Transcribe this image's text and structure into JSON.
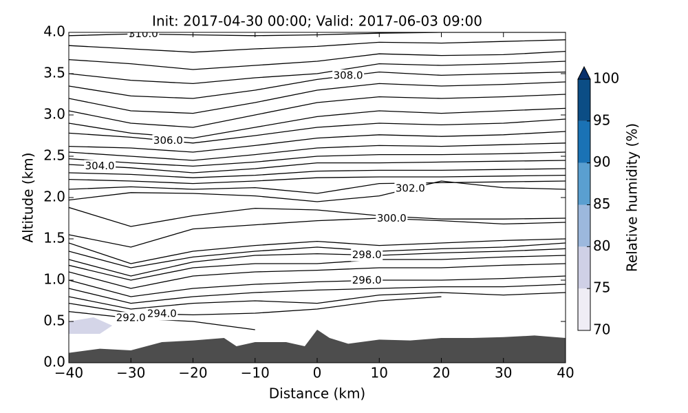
{
  "chart_data": {
    "type": "contour",
    "title": "Init: 2017-04-30 00:00; Valid: 2017-06-03 09:00",
    "x_label": "Distance (km)",
    "y_label": "Altitude (km)",
    "xlim": [
      -40,
      40
    ],
    "ylim": [
      0,
      4
    ],
    "xticks": [
      {
        "value": -40,
        "label": "−40"
      },
      {
        "value": -30,
        "label": "−30"
      },
      {
        "value": -20,
        "label": "−20"
      },
      {
        "value": -10,
        "label": "−10"
      },
      0,
      10,
      20,
      30,
      40
    ],
    "yticks": [
      {
        "value": 0,
        "label": "0.0"
      },
      {
        "value": 0.5,
        "label": "0.5"
      },
      {
        "value": 1,
        "label": "1.0"
      },
      {
        "value": 1.5,
        "label": "1.5"
      },
      {
        "value": 2,
        "label": "2.0"
      },
      {
        "value": 2.5,
        "label": "2.5"
      },
      {
        "value": 3,
        "label": "3.0"
      },
      {
        "value": 3.5,
        "label": "3.5"
      },
      {
        "value": 4,
        "label": "4.0"
      }
    ],
    "contour_color": "#000000",
    "contour_x": [
      -40,
      -30,
      -20,
      -10,
      0,
      10,
      20,
      30,
      40
    ],
    "contours": [
      {
        "label": "310.0",
        "y": [
          3.96,
          3.98,
          3.97,
          3.96,
          3.97,
          3.99,
          4.0,
          4.0,
          4.0
        ]
      },
      {
        "y": [
          3.84,
          3.8,
          3.76,
          3.8,
          3.83,
          3.88,
          3.87,
          3.89,
          3.91
        ]
      },
      {
        "y": [
          3.67,
          3.62,
          3.55,
          3.6,
          3.65,
          3.74,
          3.72,
          3.73,
          3.77
        ]
      },
      {
        "y": [
          3.5,
          3.42,
          3.38,
          3.45,
          3.5,
          3.62,
          3.6,
          3.62,
          3.65
        ]
      },
      {
        "label": "308.0",
        "y": [
          3.35,
          3.23,
          3.2,
          3.3,
          3.43,
          3.52,
          3.48,
          3.5,
          3.52
        ]
      },
      {
        "y": [
          3.2,
          3.05,
          3.02,
          3.15,
          3.3,
          3.38,
          3.35,
          3.37,
          3.4
        ]
      },
      {
        "y": [
          3.05,
          2.9,
          2.85,
          3.0,
          3.15,
          3.22,
          3.2,
          3.22,
          3.25
        ]
      },
      {
        "y": [
          2.9,
          2.78,
          2.72,
          2.85,
          2.98,
          3.05,
          3.02,
          3.05,
          3.08
        ]
      },
      {
        "label": "306.0",
        "y": [
          2.78,
          2.73,
          2.66,
          2.75,
          2.85,
          2.9,
          2.88,
          2.9,
          2.95
        ]
      },
      {
        "y": [
          2.62,
          2.6,
          2.55,
          2.63,
          2.72,
          2.76,
          2.74,
          2.76,
          2.8
        ]
      },
      {
        "y": [
          2.55,
          2.5,
          2.45,
          2.52,
          2.6,
          2.63,
          2.62,
          2.64,
          2.66
        ]
      },
      {
        "y": [
          2.47,
          2.42,
          2.38,
          2.43,
          2.5,
          2.52,
          2.52,
          2.53,
          2.55
        ]
      },
      {
        "label": "304.0",
        "y": [
          2.4,
          2.36,
          2.3,
          2.35,
          2.42,
          2.42,
          2.43,
          2.44,
          2.45
        ]
      },
      {
        "y": [
          2.3,
          2.28,
          2.24,
          2.27,
          2.32,
          2.33,
          2.33,
          2.34,
          2.35
        ]
      },
      {
        "y": [
          2.22,
          2.2,
          2.17,
          2.2,
          2.24,
          2.25,
          2.25,
          2.26,
          2.27
        ]
      },
      {
        "y": [
          2.1,
          2.13,
          2.1,
          2.12,
          2.05,
          2.17,
          2.18,
          2.19,
          2.2
        ]
      },
      {
        "label": "302.0",
        "y": [
          1.97,
          2.06,
          2.05,
          2.02,
          1.95,
          2.02,
          2.2,
          2.12,
          2.1
        ]
      },
      {
        "y": [
          1.88,
          1.65,
          1.78,
          1.87,
          1.85,
          1.78,
          1.74,
          1.74,
          1.75
        ]
      },
      {
        "label": "300.0",
        "y": [
          1.55,
          1.4,
          1.62,
          1.67,
          1.72,
          1.75,
          1.72,
          1.68,
          1.7
        ]
      },
      {
        "y": [
          1.45,
          1.2,
          1.35,
          1.42,
          1.47,
          1.42,
          1.45,
          1.48,
          1.5
        ]
      },
      {
        "y": [
          1.35,
          1.15,
          1.28,
          1.35,
          1.4,
          1.35,
          1.38,
          1.4,
          1.45
        ]
      },
      {
        "label": "298.0",
        "y": [
          1.25,
          1.05,
          1.22,
          1.3,
          1.32,
          1.3,
          1.33,
          1.35,
          1.38
        ]
      },
      {
        "y": [
          1.18,
          1.0,
          1.15,
          1.2,
          1.2,
          1.25,
          1.25,
          1.28,
          1.3
        ]
      },
      {
        "y": [
          1.1,
          0.9,
          1.05,
          1.1,
          1.12,
          1.15,
          1.15,
          1.18,
          1.2
        ]
      },
      {
        "label": "296.0",
        "y": [
          1.0,
          0.8,
          0.9,
          0.95,
          0.98,
          1.0,
          1.0,
          1.02,
          1.05
        ]
      },
      {
        "y": [
          0.9,
          0.72,
          0.8,
          0.85,
          0.88,
          0.9,
          0.92,
          0.92,
          0.95
        ]
      },
      {
        "y": [
          0.8,
          0.65,
          0.72,
          0.75,
          0.72,
          0.82,
          0.85,
          0.82,
          0.85
        ]
      },
      {
        "label": "294.0",
        "y": [
          0.72,
          0.6,
          0.58,
          0.6,
          0.65,
          0.75,
          0.8,
          null,
          null
        ]
      },
      {
        "label": "292.0",
        "y": [
          0.62,
          0.54,
          0.5,
          0.4,
          null,
          null,
          null,
          null,
          null
        ]
      }
    ],
    "terrain": {
      "color": "#4d4d4d",
      "x": [
        -40,
        -35,
        -30,
        -25,
        -20,
        -15,
        -13,
        -10,
        -5,
        -2,
        0,
        2,
        5,
        10,
        15,
        20,
        25,
        30,
        35,
        40
      ],
      "y": [
        0.12,
        0.17,
        0.15,
        0.25,
        0.27,
        0.3,
        0.2,
        0.25,
        0.25,
        0.2,
        0.4,
        0.3,
        0.23,
        0.28,
        0.27,
        0.3,
        0.3,
        0.31,
        0.33,
        0.3
      ]
    },
    "rh_patches": [
      {
        "color": "#cfd0e6",
        "x": [
          -40,
          -36,
          -33,
          -35,
          -40
        ],
        "y": [
          0.5,
          0.55,
          0.45,
          0.35,
          0.35
        ]
      }
    ],
    "colorbar": {
      "label": "Relative humidity (%)",
      "levels": [
        70,
        75,
        80,
        85,
        90,
        95,
        100
      ],
      "colors": [
        "#efedf5",
        "#cfd0e6",
        "#9cb8dd",
        "#5a9fd0",
        "#1a72b5",
        "#0b4d85"
      ],
      "extend_color": "#08306b"
    }
  }
}
